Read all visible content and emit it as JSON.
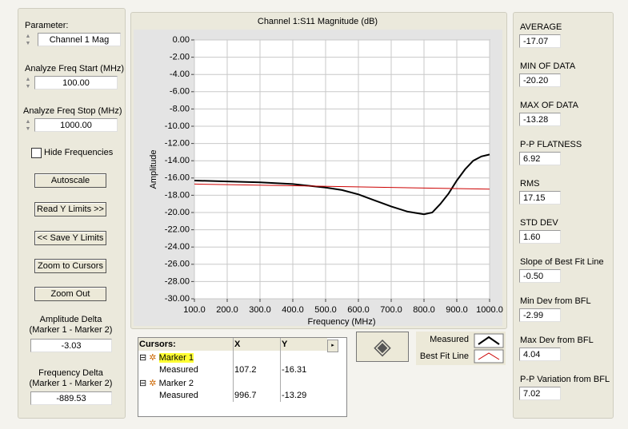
{
  "left_panel": {
    "parameter": {
      "label": "Parameter:",
      "value": "Channel 1 Mag"
    },
    "freq_start": {
      "label": "Analyze Freq Start (MHz)",
      "value": "100.00"
    },
    "freq_stop": {
      "label": "Analyze Freq Stop (MHz)",
      "value": "1000.00"
    },
    "hide_frequencies": "Hide Frequencies",
    "buttons": [
      "Autoscale",
      "Read Y Limits >>",
      "<< Save Y Limits",
      "Zoom to Cursors",
      "Zoom Out"
    ],
    "amplitude_delta": {
      "label": [
        "Amplitude Delta",
        "(Marker 1 - Marker 2)"
      ],
      "value": "-3.03"
    },
    "frequency_delta": {
      "label": [
        "Frequency Delta",
        "(Marker 1 - Marker 2)"
      ],
      "value": "-889.53"
    }
  },
  "chart_data": {
    "type": "line",
    "title": "Channel 1:S11 Magnitude (dB)",
    "x_label": "Frequency (MHz)",
    "y_label": "Amplitude",
    "xlim": [
      100,
      1000
    ],
    "ylim": [
      -30,
      0
    ],
    "xticks": [
      {
        "value": 100,
        "label": "100.0"
      },
      {
        "value": 200,
        "label": "200.0"
      },
      {
        "value": 300,
        "label": "300.0"
      },
      {
        "value": 400,
        "label": "400.0"
      },
      {
        "value": 500,
        "label": "500.0"
      },
      {
        "value": 600,
        "label": "600.0"
      },
      {
        "value": 700,
        "label": "700.0"
      },
      {
        "value": 800,
        "label": "800.0"
      },
      {
        "value": 900,
        "label": "900.0"
      },
      {
        "value": 1000,
        "label": "1000.0"
      }
    ],
    "yticks": [
      {
        "value": 0,
        "label": "0.00"
      },
      {
        "value": -2,
        "label": "-2.00"
      },
      {
        "value": -4,
        "label": "-4.00"
      },
      {
        "value": -6,
        "label": "-6.00"
      },
      {
        "value": -8,
        "label": "-8.00"
      },
      {
        "value": -10,
        "label": "-10.00"
      },
      {
        "value": -12,
        "label": "-12.00"
      },
      {
        "value": -14,
        "label": "-14.00"
      },
      {
        "value": -16,
        "label": "-16.00"
      },
      {
        "value": -18,
        "label": "-18.00"
      },
      {
        "value": -20,
        "label": "-20.00"
      },
      {
        "value": -22,
        "label": "-22.00"
      },
      {
        "value": -24,
        "label": "-24.00"
      },
      {
        "value": -26,
        "label": "-26.00"
      },
      {
        "value": -28,
        "label": "-28.00"
      },
      {
        "value": -30,
        "label": "-30.00"
      }
    ],
    "grid": true,
    "series": [
      {
        "name": "Measured",
        "color": "#000000",
        "x": [
          100,
          200,
          300,
          400,
          500,
          550,
          600,
          650,
          700,
          750,
          800,
          825,
          850,
          875,
          900,
          925,
          950,
          975,
          1000
        ],
        "values": [
          -16.3,
          -16.4,
          -16.5,
          -16.7,
          -17.1,
          -17.4,
          -17.9,
          -18.6,
          -19.3,
          -19.9,
          -20.2,
          -20.0,
          -19.0,
          -17.8,
          -16.3,
          -15.0,
          -14.0,
          -13.5,
          -13.28
        ]
      },
      {
        "name": "Best Fit Line",
        "color": "#cc0000",
        "x": [
          100,
          1000
        ],
        "values": [
          -16.7,
          -17.3
        ]
      }
    ]
  },
  "cursors": {
    "header": [
      "Cursors:",
      "X",
      "Y"
    ],
    "rows": [
      {
        "marker": "Marker 1",
        "plot": "Measured",
        "x": "107.2",
        "y": "-16.31"
      },
      {
        "marker": "Marker 2",
        "plot": "Measured",
        "x": "996.7",
        "y": "-13.29"
      }
    ]
  },
  "stats": [
    {
      "label": "AVERAGE",
      "value": "-17.07"
    },
    {
      "label": "MIN OF DATA",
      "value": "-20.20"
    },
    {
      "label": "MAX OF DATA",
      "value": "-13.28"
    },
    {
      "label": "P-P FLATNESS",
      "value": "6.92"
    },
    {
      "label": "RMS",
      "value": "17.15"
    },
    {
      "label": "STD DEV",
      "value": "1.60"
    },
    {
      "label": "Slope of Best Fit Line",
      "value": "-0.50"
    },
    {
      "label": "Min Dev from BFL",
      "value": "-2.99"
    },
    {
      "label": "Max Dev from BFL",
      "value": "4.04"
    },
    {
      "label": "P-P Variation from BFL",
      "value": "7.02"
    }
  ]
}
